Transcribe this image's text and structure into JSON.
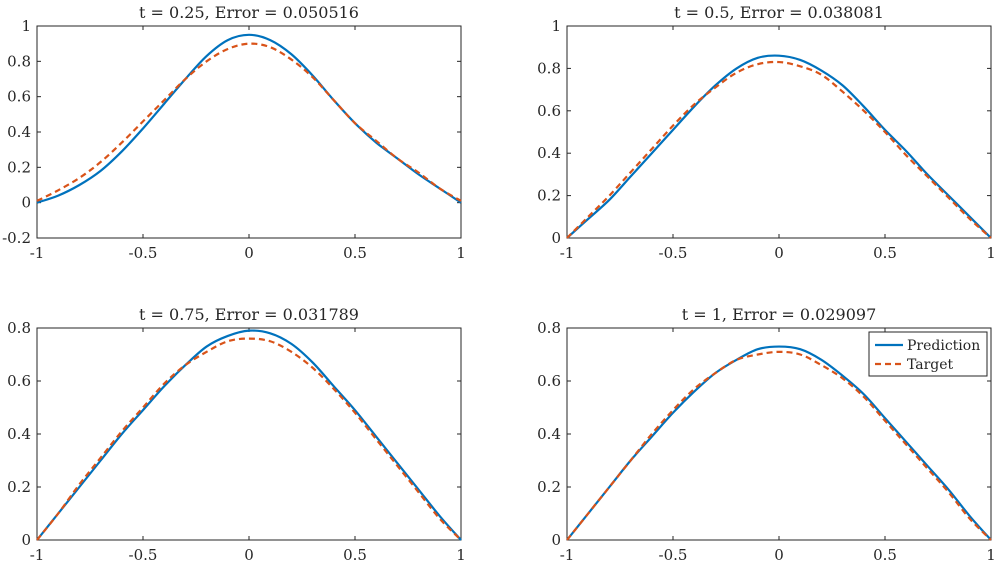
{
  "figure": {
    "colors": {
      "prediction": "#0072BD",
      "target": "#D95319",
      "axis": "#262626",
      "background": "#ffffff"
    },
    "legend": {
      "subplot": 3,
      "placement": "top-right",
      "entries": [
        {
          "label": "Prediction",
          "series": "prediction",
          "style": "solid"
        },
        {
          "label": "Target",
          "series": "target",
          "style": "dashed"
        }
      ]
    }
  },
  "chart_data": [
    {
      "type": "line",
      "title": "t = 0.25, Error = 0.050516",
      "xlim": [
        -1,
        1
      ],
      "ylim": [
        -0.2,
        1
      ],
      "xticks": [
        -1,
        -0.5,
        0,
        0.5,
        1
      ],
      "xtick_labels": [
        "-1",
        "-0.5",
        "0",
        "0.5",
        "1"
      ],
      "yticks": [
        -0.2,
        0,
        0.2,
        0.4,
        0.6,
        0.8,
        1
      ],
      "ytick_labels": [
        "-0.2",
        "0",
        "0.2",
        "0.4",
        "0.6",
        "0.8",
        "1"
      ],
      "grid": false,
      "series": [
        {
          "key": "prediction",
          "name": "Prediction",
          "x": [
            -1,
            -0.9,
            -0.8,
            -0.7,
            -0.6,
            -0.5,
            -0.4,
            -0.3,
            -0.2,
            -0.1,
            0,
            0.1,
            0.2,
            0.3,
            0.4,
            0.5,
            0.6,
            0.7,
            0.8,
            0.9,
            1
          ],
          "y": [
            0,
            0.04,
            0.1,
            0.18,
            0.29,
            0.42,
            0.56,
            0.7,
            0.83,
            0.92,
            0.95,
            0.92,
            0.84,
            0.72,
            0.58,
            0.45,
            0.34,
            0.25,
            0.16,
            0.08,
            0
          ]
        },
        {
          "key": "target",
          "name": "Target",
          "x": [
            -1,
            -0.9,
            -0.8,
            -0.7,
            -0.6,
            -0.5,
            -0.4,
            -0.3,
            -0.2,
            -0.1,
            0,
            0.1,
            0.2,
            0.3,
            0.4,
            0.5,
            0.6,
            0.7,
            0.8,
            0.9,
            1
          ],
          "y": [
            0.01,
            0.07,
            0.14,
            0.23,
            0.34,
            0.46,
            0.58,
            0.7,
            0.8,
            0.87,
            0.9,
            0.88,
            0.81,
            0.71,
            0.58,
            0.45,
            0.35,
            0.25,
            0.17,
            0.08,
            0.01
          ]
        }
      ]
    },
    {
      "type": "line",
      "title": "t = 0.5, Error = 0.038081",
      "xlim": [
        -1,
        1
      ],
      "ylim": [
        0,
        1
      ],
      "xticks": [
        -1,
        -0.5,
        0,
        0.5,
        1
      ],
      "xtick_labels": [
        "-1",
        "-0.5",
        "0",
        "0.5",
        "1"
      ],
      "yticks": [
        0,
        0.2,
        0.4,
        0.6,
        0.8,
        1
      ],
      "ytick_labels": [
        "0",
        "0.2",
        "0.4",
        "0.6",
        "0.8",
        "1"
      ],
      "grid": false,
      "series": [
        {
          "key": "prediction",
          "name": "Prediction",
          "x": [
            -1,
            -0.9,
            -0.8,
            -0.7,
            -0.6,
            -0.5,
            -0.4,
            -0.3,
            -0.2,
            -0.1,
            0,
            0.1,
            0.2,
            0.3,
            0.4,
            0.5,
            0.6,
            0.7,
            0.8,
            0.9,
            1
          ],
          "y": [
            0,
            0.09,
            0.18,
            0.29,
            0.4,
            0.51,
            0.62,
            0.72,
            0.8,
            0.85,
            0.86,
            0.84,
            0.79,
            0.72,
            0.62,
            0.51,
            0.41,
            0.3,
            0.2,
            0.1,
            0
          ]
        },
        {
          "key": "target",
          "name": "Target",
          "x": [
            -1,
            -0.9,
            -0.8,
            -0.7,
            -0.6,
            -0.5,
            -0.4,
            -0.3,
            -0.2,
            -0.1,
            0,
            0.1,
            0.2,
            0.3,
            0.4,
            0.5,
            0.6,
            0.7,
            0.8,
            0.9,
            1
          ],
          "y": [
            0,
            0.1,
            0.2,
            0.31,
            0.42,
            0.53,
            0.63,
            0.71,
            0.78,
            0.82,
            0.83,
            0.81,
            0.77,
            0.69,
            0.6,
            0.5,
            0.39,
            0.29,
            0.19,
            0.09,
            0
          ]
        }
      ]
    },
    {
      "type": "line",
      "title": "t = 0.75, Error = 0.031789",
      "xlim": [
        -1,
        1
      ],
      "ylim": [
        0,
        0.8
      ],
      "xticks": [
        -1,
        -0.5,
        0,
        0.5,
        1
      ],
      "xtick_labels": [
        "-1",
        "-0.5",
        "0",
        "0.5",
        "1"
      ],
      "yticks": [
        0,
        0.2,
        0.4,
        0.6,
        0.8
      ],
      "ytick_labels": [
        "0",
        "0.2",
        "0.4",
        "0.6",
        "0.8"
      ],
      "grid": false,
      "series": [
        {
          "key": "prediction",
          "name": "Prediction",
          "x": [
            -1,
            -0.9,
            -0.8,
            -0.7,
            -0.6,
            -0.5,
            -0.4,
            -0.3,
            -0.2,
            -0.1,
            0,
            0.1,
            0.2,
            0.3,
            0.4,
            0.5,
            0.6,
            0.7,
            0.8,
            0.9,
            1
          ],
          "y": [
            0,
            0.1,
            0.2,
            0.3,
            0.4,
            0.49,
            0.58,
            0.66,
            0.73,
            0.77,
            0.79,
            0.78,
            0.74,
            0.67,
            0.58,
            0.49,
            0.39,
            0.29,
            0.19,
            0.09,
            0
          ]
        },
        {
          "key": "target",
          "name": "Target",
          "x": [
            -1,
            -0.9,
            -0.8,
            -0.7,
            -0.6,
            -0.5,
            -0.4,
            -0.3,
            -0.2,
            -0.1,
            0,
            0.1,
            0.2,
            0.3,
            0.4,
            0.5,
            0.6,
            0.7,
            0.8,
            0.9,
            1
          ],
          "y": [
            0,
            0.1,
            0.21,
            0.31,
            0.41,
            0.5,
            0.59,
            0.66,
            0.71,
            0.75,
            0.76,
            0.75,
            0.71,
            0.65,
            0.57,
            0.48,
            0.38,
            0.28,
            0.18,
            0.08,
            0
          ]
        }
      ]
    },
    {
      "type": "line",
      "title": "t = 1, Error = 0.029097",
      "xlim": [
        -1,
        1
      ],
      "ylim": [
        0,
        0.8
      ],
      "xticks": [
        -1,
        -0.5,
        0,
        0.5,
        1
      ],
      "xtick_labels": [
        "-1",
        "-0.5",
        "0",
        "0.5",
        "1"
      ],
      "yticks": [
        0,
        0.2,
        0.4,
        0.6,
        0.8
      ],
      "ytick_labels": [
        "0",
        "0.2",
        "0.4",
        "0.6",
        "0.8"
      ],
      "grid": false,
      "series": [
        {
          "key": "prediction",
          "name": "Prediction",
          "x": [
            -1,
            -0.9,
            -0.8,
            -0.7,
            -0.6,
            -0.5,
            -0.4,
            -0.3,
            -0.2,
            -0.1,
            0,
            0.1,
            0.2,
            0.3,
            0.4,
            0.5,
            0.6,
            0.7,
            0.8,
            0.9,
            1
          ],
          "y": [
            0,
            0.1,
            0.2,
            0.3,
            0.39,
            0.48,
            0.56,
            0.63,
            0.68,
            0.72,
            0.73,
            0.72,
            0.68,
            0.62,
            0.55,
            0.46,
            0.37,
            0.28,
            0.19,
            0.09,
            0
          ]
        },
        {
          "key": "target",
          "name": "Target",
          "x": [
            -1,
            -0.9,
            -0.8,
            -0.7,
            -0.6,
            -0.5,
            -0.4,
            -0.3,
            -0.2,
            -0.1,
            0,
            0.1,
            0.2,
            0.3,
            0.4,
            0.5,
            0.6,
            0.7,
            0.8,
            0.9,
            1
          ],
          "y": [
            0,
            0.1,
            0.2,
            0.3,
            0.4,
            0.49,
            0.57,
            0.63,
            0.68,
            0.7,
            0.71,
            0.7,
            0.66,
            0.61,
            0.54,
            0.45,
            0.36,
            0.27,
            0.18,
            0.08,
            0
          ]
        }
      ]
    }
  ]
}
